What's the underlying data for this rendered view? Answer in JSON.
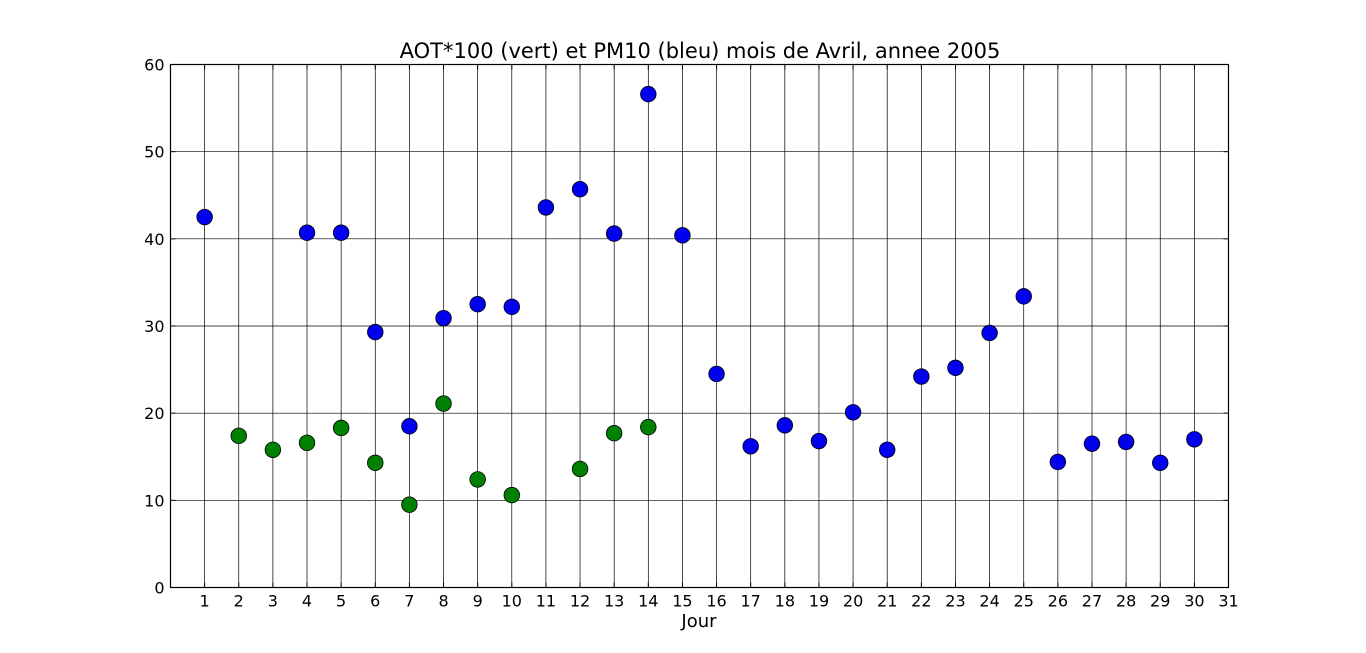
{
  "chart_data": {
    "type": "scatter",
    "title": "AOT*100 (vert) et PM10 (bleu) mois de Avril, annee 2005",
    "xlabel": "Jour",
    "ylabel": "",
    "xlim": [
      0,
      31
    ],
    "ylim": [
      0,
      60
    ],
    "xticks": [
      1,
      2,
      3,
      4,
      5,
      6,
      7,
      8,
      9,
      10,
      11,
      12,
      13,
      14,
      15,
      16,
      17,
      18,
      19,
      20,
      21,
      22,
      23,
      24,
      25,
      26,
      27,
      28,
      29,
      30,
      31
    ],
    "yticks": [
      0,
      10,
      20,
      30,
      40,
      50,
      60
    ],
    "grid": true,
    "legend": "none",
    "series": [
      {
        "color": "#0000ee",
        "x": [
          1,
          4,
          5,
          6,
          7,
          8,
          9,
          10,
          11,
          12,
          13,
          14,
          15,
          16,
          17,
          18,
          19,
          20,
          21,
          22,
          23,
          24,
          25,
          26,
          27,
          28,
          29,
          30
        ],
        "y": [
          42.5,
          40.7,
          40.7,
          29.3,
          18.5,
          30.9,
          32.5,
          32.2,
          43.6,
          45.7,
          40.6,
          56.6,
          40.4,
          24.5,
          16.2,
          18.6,
          16.8,
          20.1,
          15.8,
          24.2,
          25.2,
          29.2,
          33.4,
          14.4,
          16.5,
          16.7,
          14.3,
          17.0
        ]
      },
      {
        "color": "#008000",
        "x": [
          2,
          3,
          4,
          5,
          6,
          7,
          8,
          9,
          10,
          12,
          13,
          14
        ],
        "y": [
          17.4,
          15.8,
          16.6,
          18.3,
          14.3,
          9.5,
          21.1,
          12.4,
          10.6,
          13.6,
          17.7,
          18.4
        ]
      }
    ]
  }
}
